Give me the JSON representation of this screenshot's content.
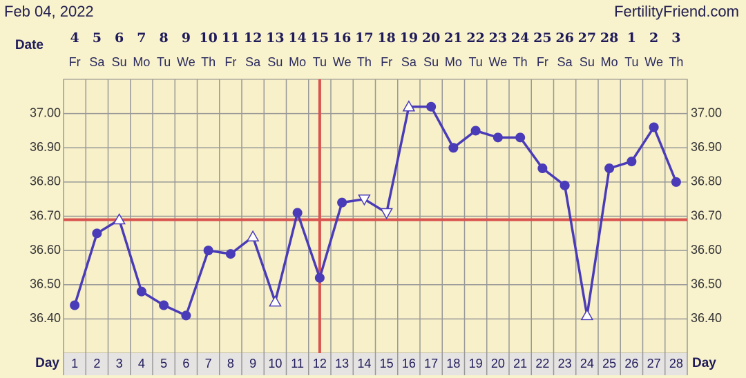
{
  "header": {
    "date": "Feb 04, 2022",
    "site": "FertilityFriend.com"
  },
  "chart_data": {
    "type": "line",
    "date_label": "Date",
    "day_label": "Day",
    "dates": [
      4,
      5,
      6,
      7,
      8,
      9,
      10,
      11,
      12,
      13,
      14,
      15,
      16,
      17,
      18,
      19,
      20,
      21,
      22,
      23,
      24,
      25,
      26,
      27,
      28,
      1,
      2,
      3
    ],
    "weekdays": [
      "Fr",
      "Sa",
      "Su",
      "Mo",
      "Tu",
      "We",
      "Th",
      "Fr",
      "Sa",
      "Su",
      "Mo",
      "Tu",
      "We",
      "Th",
      "Fr",
      "Sa",
      "Su",
      "Mo",
      "Tu",
      "We",
      "Th",
      "Fr",
      "Sa",
      "Su",
      "Mo",
      "Tu",
      "We",
      "Th"
    ],
    "days": [
      1,
      2,
      3,
      4,
      5,
      6,
      7,
      8,
      9,
      10,
      11,
      12,
      13,
      14,
      15,
      16,
      17,
      18,
      19,
      20,
      21,
      22,
      23,
      24,
      25,
      26,
      27,
      28
    ],
    "series": [
      {
        "color": "#4a3bb8",
        "values": [
          36.44,
          36.65,
          36.69,
          36.48,
          36.44,
          36.41,
          36.6,
          36.59,
          36.64,
          36.45,
          36.71,
          36.52,
          36.74,
          36.75,
          36.71,
          37.02,
          37.02,
          36.9,
          36.95,
          36.93,
          36.93,
          36.84,
          36.79,
          36.41,
          36.84,
          36.86,
          36.96,
          36.8
        ],
        "markers": [
          "circle",
          "circle",
          "triangle-up",
          "circle",
          "circle",
          "circle",
          "circle",
          "circle",
          "triangle-up",
          "triangle-up",
          "circle",
          "circle",
          "circle",
          "triangle-down",
          "triangle-down",
          "triangle-up",
          "circle",
          "circle",
          "circle",
          "circle",
          "circle",
          "circle",
          "circle",
          "triangle-up",
          "circle",
          "circle",
          "circle",
          "circle"
        ]
      }
    ],
    "ylim": [
      36.3,
      37.1
    ],
    "yticks": [
      {
        "value": 36.4,
        "label": "36.40"
      },
      {
        "value": 36.5,
        "label": "36.50"
      },
      {
        "value": 36.6,
        "label": "36.60"
      },
      {
        "value": 36.7,
        "label": "36.70"
      },
      {
        "value": 36.8,
        "label": "36.80"
      },
      {
        "value": 36.9,
        "label": "36.90"
      },
      {
        "value": 37.0,
        "label": "37.00"
      }
    ],
    "coverline": 36.69,
    "ovulation_day": 12,
    "reference_color": "#d9534f",
    "grid": true
  }
}
